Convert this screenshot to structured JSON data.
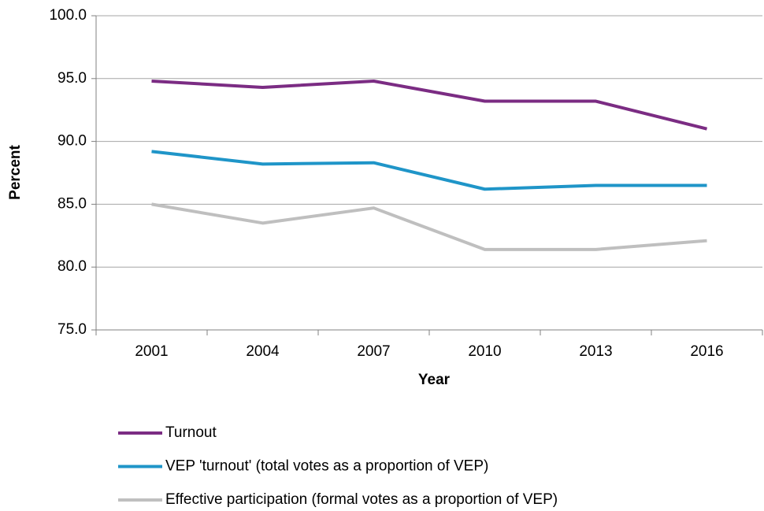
{
  "chart_data": {
    "type": "line",
    "x_label": "Year",
    "y_label": "Percent",
    "categories": [
      "2001",
      "2004",
      "2007",
      "2010",
      "2013",
      "2016"
    ],
    "series": [
      {
        "name": "Turnout",
        "color": "#7b2c83",
        "values": [
          94.8,
          94.3,
          94.8,
          93.2,
          93.2,
          91.0
        ]
      },
      {
        "name": "VEP 'turnout' (total votes as a proportion of VEP)",
        "color": "#1f95c8",
        "values": [
          89.2,
          88.2,
          88.3,
          86.2,
          86.5,
          86.5
        ]
      },
      {
        "name": "Effective participation (formal votes as a proportion of VEP)",
        "color": "#bfbfbf",
        "values": [
          85.0,
          83.5,
          84.7,
          81.4,
          81.4,
          82.1
        ]
      }
    ],
    "ylim": [
      75,
      100
    ],
    "yticks": [
      {
        "value": 75,
        "label": "75.0"
      },
      {
        "value": 80,
        "label": "80.0"
      },
      {
        "value": 85,
        "label": "85.0"
      },
      {
        "value": 90,
        "label": "90.0"
      },
      {
        "value": 95,
        "label": "95.0"
      },
      {
        "value": 100,
        "label": "100.0"
      }
    ],
    "grid": true,
    "legend": "bottom"
  }
}
